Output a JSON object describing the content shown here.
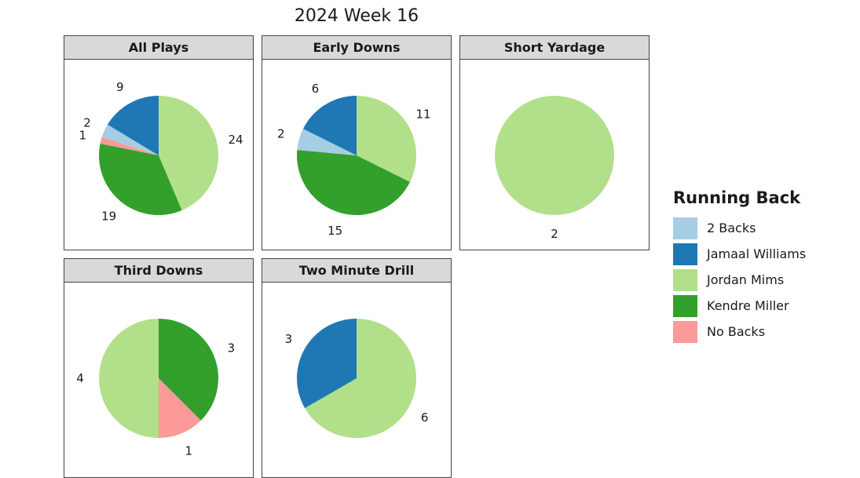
{
  "subtitle": "2024 Week 16",
  "legend": {
    "title": "Running Back",
    "entries": [
      {
        "name": "2 Backs",
        "color": "#a6cee3"
      },
      {
        "name": "Jamaal Williams",
        "color": "#1f78b4"
      },
      {
        "name": "Jordan Mims",
        "color": "#b2df8a"
      },
      {
        "name": "Kendre Miller",
        "color": "#33a02c"
      },
      {
        "name": "No Backs",
        "color": "#fb9a99"
      }
    ]
  },
  "chart_data": [
    {
      "type": "pie",
      "title": "All Plays",
      "slices": [
        {
          "label": "Jordan Mims",
          "value": 24
        },
        {
          "label": "Kendre Miller",
          "value": 19
        },
        {
          "label": "No Backs",
          "value": 1
        },
        {
          "label": "2 Backs",
          "value": 2
        },
        {
          "label": "Jamaal Williams",
          "value": 9
        }
      ]
    },
    {
      "type": "pie",
      "title": "Early Downs",
      "slices": [
        {
          "label": "Jordan Mims",
          "value": 11
        },
        {
          "label": "Kendre Miller",
          "value": 15
        },
        {
          "label": "2 Backs",
          "value": 2
        },
        {
          "label": "Jamaal Williams",
          "value": 6
        }
      ]
    },
    {
      "type": "pie",
      "title": "Short Yardage",
      "slices": [
        {
          "label": "Jordan Mims",
          "value": 2
        }
      ]
    },
    {
      "type": "pie",
      "title": "Third Downs",
      "slices": [
        {
          "label": "Kendre Miller",
          "value": 3
        },
        {
          "label": "No Backs",
          "value": 1
        },
        {
          "label": "Jordan Mims",
          "value": 4
        }
      ]
    },
    {
      "type": "pie",
      "title": "Two Minute Drill",
      "slices": [
        {
          "label": "Jordan Mims",
          "value": 6
        },
        {
          "label": "Jamaal Williams",
          "value": 3
        }
      ]
    }
  ]
}
